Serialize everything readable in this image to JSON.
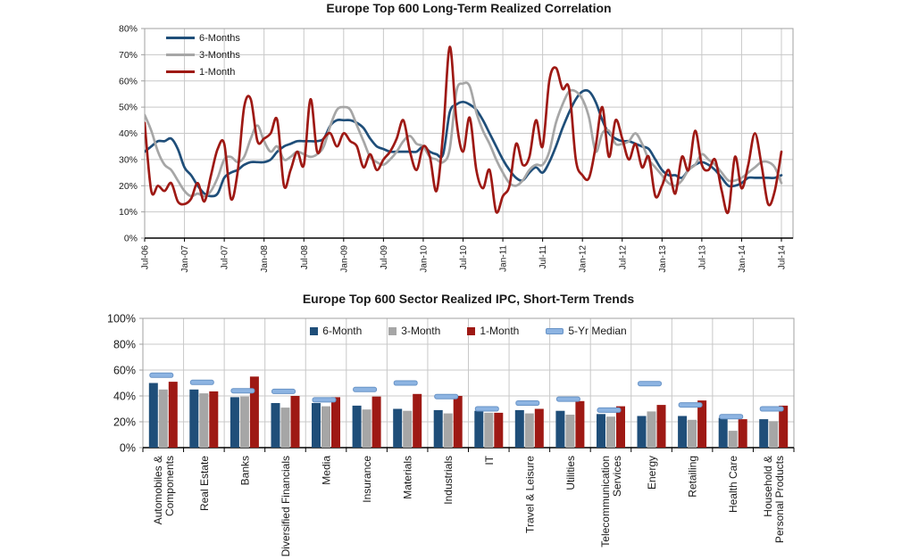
{
  "chart_data": [
    {
      "type": "line",
      "title": "Europe Top 600 Long-Term Realized Correlation",
      "ylabel": "",
      "xlabel": "",
      "ylim": [
        0,
        80
      ],
      "y_tick_labels": [
        "0%",
        "10%",
        "20%",
        "30%",
        "40%",
        "50%",
        "60%",
        "70%",
        "80%"
      ],
      "x_tick_labels": [
        "Jul-06",
        "Jan-07",
        "Jul-07",
        "Jan-08",
        "Jul-08",
        "Jan-09",
        "Jul-09",
        "Jan-10",
        "Jul-10",
        "Jan-11",
        "Jul-11",
        "Jan-12",
        "Jul-12",
        "Jan-13",
        "Jul-13",
        "Jan-14",
        "Jul-14"
      ],
      "x_unit": "monthly samples from Jul-06 to Jul-14",
      "grid": true,
      "legend_position": "top-left",
      "series": [
        {
          "name": "6-Months",
          "color": "#1F4E79",
          "values": [
            33,
            35,
            37,
            37,
            38,
            34,
            27,
            24,
            20,
            17,
            16,
            17,
            23,
            25,
            26,
            28,
            29,
            29,
            29,
            30,
            33,
            35,
            36,
            37,
            37,
            37,
            37,
            38,
            43,
            45,
            45,
            45,
            44,
            42,
            38,
            35,
            34,
            33,
            33,
            33,
            33,
            33,
            35,
            33,
            32,
            32,
            48,
            51,
            52,
            51,
            49,
            45,
            40,
            35,
            30,
            26,
            23,
            22,
            25,
            27,
            25,
            29,
            35,
            42,
            48,
            53,
            56,
            56,
            52,
            45,
            40,
            38,
            37,
            37,
            36,
            35,
            34,
            30,
            26,
            24,
            24,
            23,
            26,
            28,
            29,
            28,
            26,
            23,
            20,
            20,
            21,
            23,
            23,
            23,
            23,
            23,
            24
          ]
        },
        {
          "name": "3-Months",
          "color": "#A6A6A6",
          "values": [
            47,
            41,
            33,
            28,
            26,
            22,
            18,
            16,
            17,
            16,
            18,
            23,
            30,
            31,
            29,
            31,
            38,
            43,
            37,
            33,
            35,
            30,
            31,
            33,
            32,
            31,
            32,
            35,
            43,
            49,
            50,
            49,
            43,
            37,
            31,
            29,
            28,
            30,
            33,
            37,
            39,
            36,
            35,
            31,
            30,
            29,
            34,
            56,
            59,
            58,
            48,
            41,
            36,
            30,
            25,
            21,
            20,
            22,
            26,
            28,
            28,
            33,
            44,
            51,
            56,
            56,
            53,
            46,
            33,
            40,
            41,
            36,
            36,
            37,
            40,
            36,
            30,
            27,
            24,
            21,
            20,
            22,
            26,
            28,
            32,
            30,
            28,
            25,
            22,
            22,
            23,
            25,
            27,
            29,
            29,
            27,
            21
          ]
        },
        {
          "name": "1-Month",
          "color": "#9E1914",
          "values": [
            44,
            18,
            20,
            18,
            21,
            14,
            13,
            15,
            21,
            14,
            24,
            34,
            36,
            15,
            25,
            50,
            53,
            37,
            38,
            40,
            45,
            20,
            26,
            33,
            28,
            53,
            33,
            38,
            40,
            35,
            40,
            37,
            35,
            27,
            32,
            26,
            30,
            33,
            38,
            45,
            33,
            26,
            35,
            31,
            18,
            40,
            73,
            45,
            33,
            46,
            26,
            19,
            26,
            10,
            16,
            20,
            36,
            28,
            31,
            45,
            35,
            60,
            65,
            57,
            57,
            30,
            24,
            23,
            35,
            50,
            31,
            45,
            38,
            30,
            36,
            27,
            31,
            16,
            20,
            26,
            17,
            31,
            26,
            41,
            28,
            26,
            30,
            18,
            10,
            31,
            19,
            28,
            40,
            28,
            13,
            18,
            33
          ]
        }
      ]
    },
    {
      "type": "bar",
      "title": "Europe Top 600 Sector Realized IPC, Short-Term Trends",
      "ylim": [
        0,
        100
      ],
      "y_tick_labels": [
        "0%",
        "20%",
        "40%",
        "60%",
        "80%",
        "100%"
      ],
      "grid": true,
      "legend_position": "top-center",
      "categories": [
        "Automobiles &\nComponents",
        "Real Estate",
        "Banks",
        "Diversified Financials",
        "Media",
        "Insurance",
        "Materials",
        "Industrials",
        "IT",
        "Travel & Leisure",
        "Utilities",
        "Telecommunication\nServices",
        "Energy",
        "Retailing",
        "Health Care",
        "Household &\nPersonal Products"
      ],
      "series": [
        {
          "name": "6-Month",
          "color": "#1F4E79",
          "marker": "bar",
          "values": [
            50,
            45,
            39,
            34.5,
            34.5,
            32.5,
            30,
            29,
            28.5,
            29,
            28.5,
            26,
            24.5,
            24.5,
            23,
            22
          ]
        },
        {
          "name": "3-Month",
          "color": "#A6A6A6",
          "marker": "bar",
          "values": [
            45,
            42,
            39.5,
            31,
            32,
            29.5,
            28.5,
            26.5,
            27,
            26.5,
            25.5,
            24,
            28,
            21.5,
            13,
            20.5
          ]
        },
        {
          "name": "1-Month",
          "color": "#9E1914",
          "marker": "bar",
          "values": [
            51,
            43.5,
            55,
            40,
            39,
            39.5,
            41.5,
            40,
            27,
            30,
            36,
            32,
            33,
            36.5,
            22,
            32.5
          ]
        },
        {
          "name": "5-Yr Median",
          "color": "#8DB4E2",
          "border_color": "#6893C6",
          "marker": "dash",
          "values": [
            56,
            50.5,
            44,
            43.5,
            37,
            45,
            50,
            39.5,
            30,
            34.5,
            37.5,
            29,
            49.5,
            33,
            24,
            30
          ]
        }
      ]
    }
  ],
  "style": {
    "gridline_color": "#C8C8C8",
    "plot_border_color": "#A0A0A0",
    "axis_color": "#000000"
  }
}
